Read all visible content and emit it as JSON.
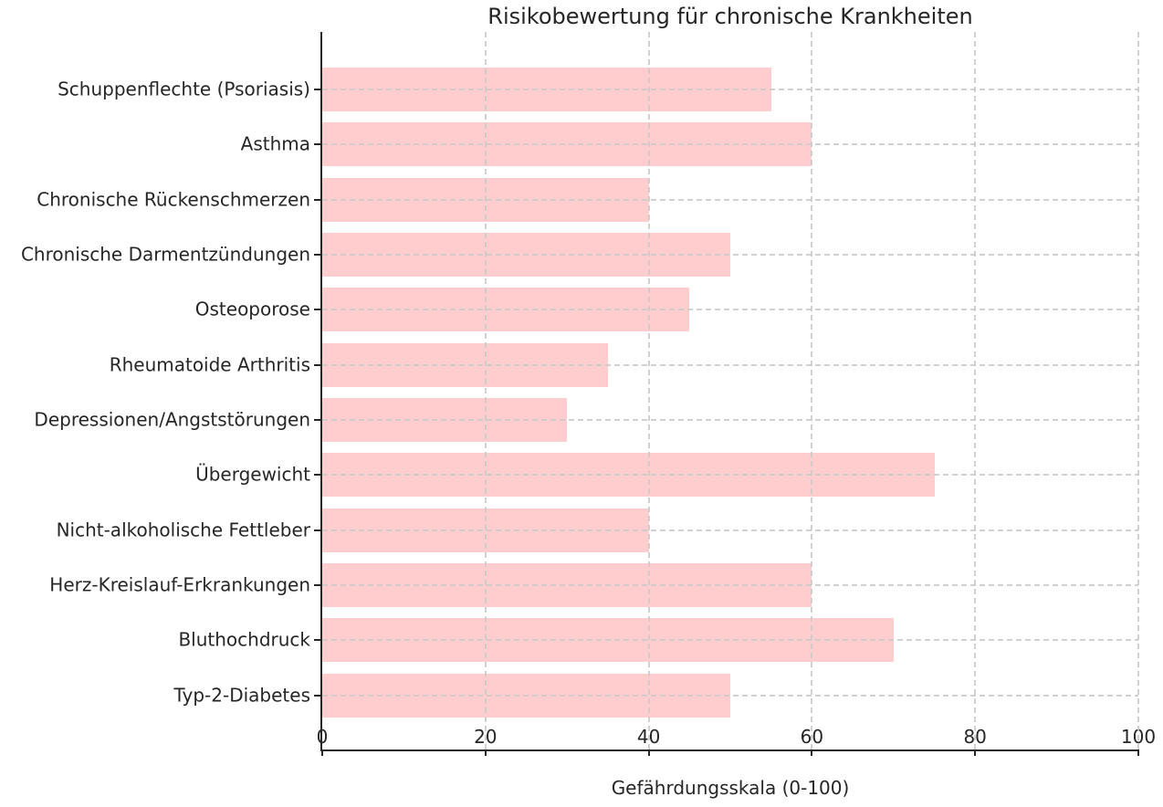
{
  "chart_data": {
    "type": "bar",
    "orientation": "horizontal",
    "title": "Risikobewertung für chronische Krankheiten",
    "xlabel": "Gefährdungsskala (0-100)",
    "ylabel": "",
    "categories_top_to_bottom": [
      "Schuppenflechte (Psoriasis)",
      "Asthma",
      "Chronische Rückenschmerzen",
      "Chronische Darmentzündungen",
      "Osteoporose",
      "Rheumatoide Arthritis",
      "Depressionen/Angststörungen",
      "Übergewicht",
      "Nicht-alkoholische Fettleber",
      "Herz-Kreislauf-Erkrankungen",
      "Bluthochdruck",
      "Typ-2-Diabetes"
    ],
    "values": [
      55,
      60,
      40,
      50,
      45,
      35,
      30,
      75,
      40,
      60,
      70,
      50
    ],
    "xlim": [
      0,
      100
    ],
    "xticks": [
      0,
      20,
      40,
      60,
      80,
      100
    ],
    "grid": true,
    "grid_style": "dashed",
    "grid_axes": "both",
    "grid_above_bars": true,
    "legend": "none",
    "colors": {
      "bar": "#ffcdcd",
      "axis": "#262626",
      "grid": "#c9c9c9",
      "text": "#262626",
      "background": "#ffffff"
    }
  }
}
